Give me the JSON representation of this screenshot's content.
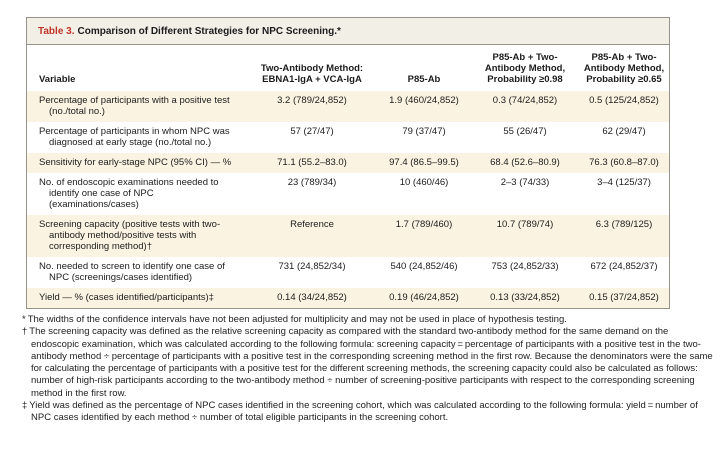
{
  "colors": {
    "accent_red": "#bf3426",
    "row_stripe_cream": "#fbf3e1",
    "title_band": "#f2efe7",
    "frame_border": "#97928a"
  },
  "title": {
    "label": "Table 3.",
    "text": "Comparison of Different Strategies for NPC Screening.*"
  },
  "table": {
    "columns": [
      "Variable",
      "Two-Antibody Method:\nEBNA1-IgA + VCA-IgA",
      "P85-Ab",
      "P85-Ab + Two-\nAntibody Method,\nProbability ≥0.98",
      "P85-Ab + Two-\nAntibody Method,\nProbability ≥0.65"
    ],
    "rows": [
      {
        "variable": "Percentage of participants with a positive test (no./total no.)",
        "values": [
          "3.2 (789/24,852)",
          "1.9 (460/24,852)",
          "0.3 (74/24,852)",
          "0.5 (125/24,852)"
        ]
      },
      {
        "variable": "Percentage of participants in whom NPC was diagnosed at early stage (no./total no.)",
        "values": [
          "57 (27/47)",
          "79 (37/47)",
          "55 (26/47)",
          "62 (29/47)"
        ]
      },
      {
        "variable": "Sensitivity for early-stage NPC (95% CI) — %",
        "values": [
          "71.1 (55.2–83.0)",
          "97.4 (86.5–99.5)",
          "68.4 (52.6–80.9)",
          "76.3 (60.8–87.0)"
        ]
      },
      {
        "variable": "No. of endoscopic examinations needed to identify one case of NPC (examinations/cases)",
        "values": [
          "23 (789/34)",
          "10 (460/46)",
          "2–3 (74/33)",
          "3–4 (125/37)"
        ]
      },
      {
        "variable": "Screening capacity (positive tests with two-antibody method/positive tests with corresponding method)†",
        "values": [
          "Reference",
          "1.7 (789/460)",
          "10.7 (789/74)",
          "6.3 (789/125)"
        ]
      },
      {
        "variable": "No. needed to screen to identify one case of NPC (screenings/cases identified)",
        "values": [
          "731 (24,852/34)",
          "540 (24,852/46)",
          "753 (24,852/33)",
          "672 (24,852/37)"
        ]
      },
      {
        "variable": "Yield — % (cases identified/participants)‡",
        "values": [
          "0.14 (34/24,852)",
          "0.19 (46/24,852)",
          "0.13 (33/24,852)",
          "0.15 (37/24,852)"
        ]
      }
    ]
  },
  "footnotes": [
    {
      "symbol": "*",
      "text": "The widths of the confidence intervals have not been adjusted for multiplicity and may not be used in place of hypothesis testing."
    },
    {
      "symbol": "†",
      "text": "The screening capacity was defined as the relative screening capacity as compared with the standard two-antibody method for the same demand on the endoscopic examination, which was calculated according to the following formula: screening capacity = percentage of participants with a positive test in the two-antibody method ÷ percentage of participants with a positive test in the corresponding screening method in the first row. Because the denominators were the same for calculating the percentage of participants with a positive test for the different screening methods, the screening capacity could also be calculated as follows: number of high-risk participants according to the two-antibody method ÷ number of screening-positive participants with respect to the corresponding screening method in the first row."
    },
    {
      "symbol": "‡",
      "text": "Yield was defined as the percentage of NPC cases identified in the screening cohort, which was calculated according to the following formula: yield = number of NPC cases identified by each method ÷ number of total eligible participants in the screening cohort."
    }
  ]
}
